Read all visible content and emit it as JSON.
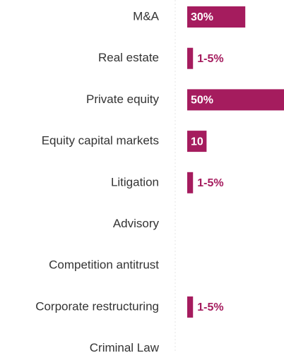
{
  "chart_data": {
    "type": "bar",
    "orientation": "horizontal",
    "categories": [
      "M&A",
      "Real estate",
      "Private equity",
      "Equity capital markets",
      "Litigation",
      "Advisory",
      "Competition antitrust",
      "Corporate restructuring",
      "Criminal Law"
    ],
    "values": [
      30,
      3,
      50,
      10,
      3,
      null,
      null,
      3,
      null
    ],
    "value_labels": [
      "30%",
      "1-5%",
      "50%",
      "10",
      "1-5%",
      null,
      null,
      "1-5%",
      null
    ],
    "color": "#a51c5e",
    "xlim": [
      0,
      50
    ]
  }
}
